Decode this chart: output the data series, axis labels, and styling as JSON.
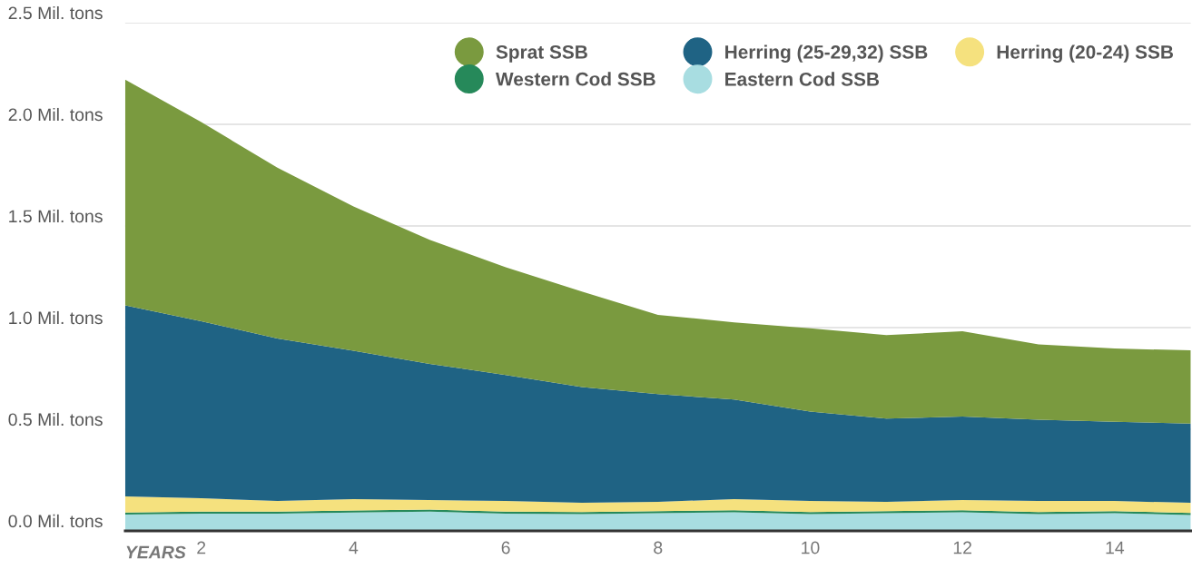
{
  "chart_data": {
    "type": "area",
    "stacked": true,
    "xlabel": "YEARS",
    "x": [
      1,
      2,
      3,
      4,
      5,
      6,
      7,
      8,
      9,
      10,
      11,
      12,
      13,
      14,
      15
    ],
    "series": [
      {
        "name": "Eastern Cod SSB",
        "color": "#a8dde1",
        "values": [
          0.08,
          0.085,
          0.085,
          0.09,
          0.095,
          0.085,
          0.083,
          0.087,
          0.092,
          0.083,
          0.087,
          0.092,
          0.083,
          0.087,
          0.078
        ]
      },
      {
        "name": "Western Cod SSB",
        "color": "#26895a",
        "values": [
          0.01,
          0.01,
          0.01,
          0.01,
          0.01,
          0.01,
          0.01,
          0.01,
          0.01,
          0.01,
          0.01,
          0.01,
          0.01,
          0.01,
          0.01
        ]
      },
      {
        "name": "Herring (20-24) SSB",
        "color": "#f5e17e",
        "values": [
          0.08,
          0.066,
          0.052,
          0.056,
          0.047,
          0.052,
          0.045,
          0.046,
          0.054,
          0.054,
          0.046,
          0.05,
          0.054,
          0.05,
          0.05
        ]
      },
      {
        "name": "Herring (25-29,32) SSB",
        "color": "#1f6384",
        "values": [
          0.94,
          0.87,
          0.8,
          0.73,
          0.67,
          0.62,
          0.57,
          0.53,
          0.49,
          0.44,
          0.41,
          0.41,
          0.4,
          0.39,
          0.39
        ]
      },
      {
        "name": "Sprat SSB",
        "color": "#7a9a3f",
        "values": [
          1.11,
          0.98,
          0.84,
          0.71,
          0.61,
          0.53,
          0.47,
          0.39,
          0.38,
          0.41,
          0.41,
          0.42,
          0.37,
          0.36,
          0.36
        ]
      }
    ],
    "xlim": [
      1,
      15
    ],
    "xticks": [
      2,
      4,
      6,
      8,
      10,
      12,
      14
    ],
    "ylim": [
      0,
      2.5
    ],
    "yticks": [
      {
        "value": 0,
        "label": "0.0 Mil. tons"
      },
      {
        "value": 0.5,
        "label": "0.5 Mil. tons"
      },
      {
        "value": 1.0,
        "label": "1.0 Mil. tons"
      },
      {
        "value": 1.5,
        "label": "1.5 Mil. tons"
      },
      {
        "value": 2.0,
        "label": "2.0 Mil. tons"
      },
      {
        "value": 2.5,
        "label": "2.5 Mil. tons"
      }
    ],
    "grid": "y",
    "legend": "top right",
    "marker": "none"
  }
}
